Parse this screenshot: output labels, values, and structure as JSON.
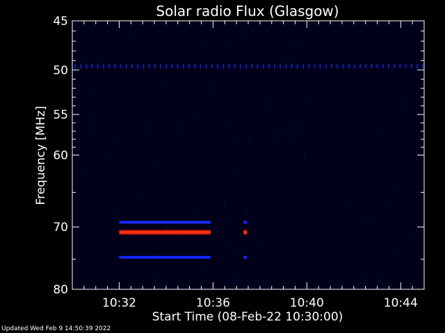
{
  "chart_data": {
    "type": "heatmap",
    "title": "Solar radio Flux (Glasgow)",
    "xlabel": "Start Time (08-Feb-22 10:30:00)",
    "ylabel": "Frequency [MHz]",
    "x_range": [
      "10:30:00",
      "10:45:00"
    ],
    "y_range": [
      45,
      80
    ],
    "y_inverted": true,
    "y_scale": "log",
    "x_ticks": [
      {
        "label": "10:32",
        "minutes": 2
      },
      {
        "label": "10:36",
        "minutes": 6
      },
      {
        "label": "10:40",
        "minutes": 10
      },
      {
        "label": "10:44",
        "minutes": 14
      }
    ],
    "y_ticks": [
      {
        "label": "45",
        "value": 45
      },
      {
        "label": "50",
        "value": 50
      },
      {
        "label": "55",
        "value": 55
      },
      {
        "label": "60",
        "value": 60
      },
      {
        "label": "70",
        "value": 70
      },
      {
        "label": "80",
        "value": 80
      }
    ],
    "background_color": "#00001a",
    "features": [
      {
        "name": "emission-band",
        "freq_mhz": 69.3,
        "start_min": 2.0,
        "end_min": 5.9,
        "color": "#1428ff"
      },
      {
        "name": "emission-band",
        "freq_mhz": 70.8,
        "start_min": 2.0,
        "end_min": 5.9,
        "color": "#ff3010"
      },
      {
        "name": "emission-band",
        "freq_mhz": 74.7,
        "start_min": 2.0,
        "end_min": 5.9,
        "color": "#1428ff"
      },
      {
        "name": "emission-burst",
        "freq_mhz": 69.3,
        "start_min": 7.3,
        "end_min": 7.45,
        "color": "#1428ff"
      },
      {
        "name": "emission-burst",
        "freq_mhz": 70.8,
        "start_min": 7.3,
        "end_min": 7.45,
        "color": "#ff3010"
      },
      {
        "name": "emission-burst",
        "freq_mhz": 74.7,
        "start_min": 7.3,
        "end_min": 7.45,
        "color": "#1428ff"
      },
      {
        "name": "interference-line",
        "freq_mhz": 49.6,
        "start_min": 0.0,
        "end_min": 15.0,
        "color": "#1020c0"
      }
    ]
  },
  "footer": {
    "updated": "Updated Wed Feb  9 14:50:39 2022"
  }
}
